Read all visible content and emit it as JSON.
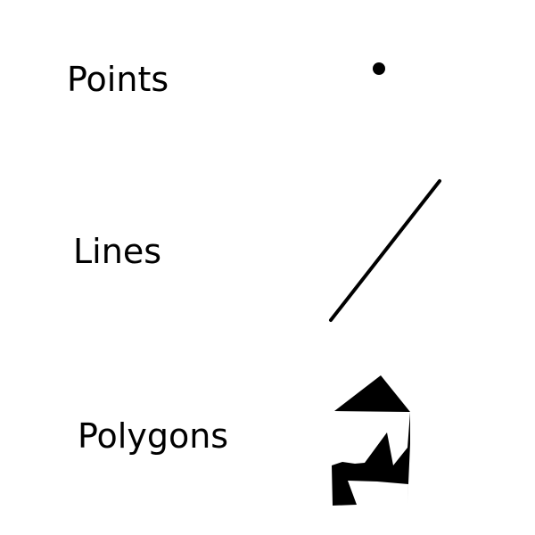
{
  "labels": {
    "points": "Points",
    "lines": "Lines",
    "polygons": "Polygons"
  },
  "colors": {
    "background": "#ffffff",
    "shape_fill": "#000000",
    "text": "#000000"
  }
}
